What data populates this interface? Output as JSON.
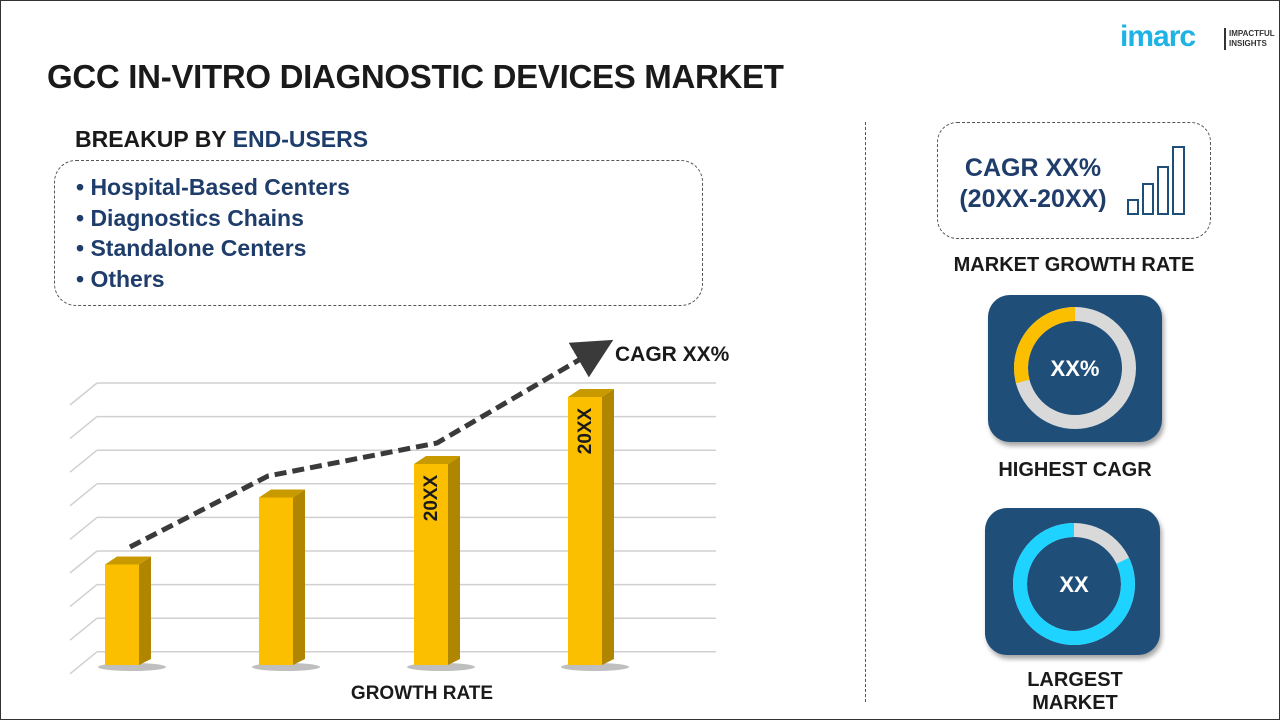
{
  "header": {
    "title": "GCC IN-VITRO DIAGNOSTIC DEVICES MARKET"
  },
  "logo": {
    "name": "imarc",
    "tagline_line1": "IMPACTFUL",
    "tagline_line2": "INSIGHTS"
  },
  "breakup": {
    "prefix": "BREAKUP BY ",
    "highlight": "END-USERS",
    "items": [
      "• Hospital-Based Centers",
      "• Diagnostics Chains",
      "• Standalone Centers",
      "• Others"
    ]
  },
  "growth_chart": {
    "cagr_label": "CAGR XX%",
    "xlabel": "GROWTH RATE",
    "bar_labels": [
      "",
      "",
      "20XX",
      "20XX"
    ],
    "relative_heights": [
      0.3,
      0.5,
      0.6,
      0.8
    ],
    "bar_color": "#fbbf00"
  },
  "market_growth": {
    "line1": "CAGR XX%",
    "line2": "(20XX-20XX)",
    "label": "MARKET GROWTH RATE"
  },
  "highest_cagr": {
    "value": "XX%",
    "label": "HIGHEST CAGR",
    "fill_fraction": 0.29,
    "color": "#fbbf00"
  },
  "largest_market": {
    "value": "XX",
    "label": "LARGEST MARKET",
    "fill_fraction": 0.82,
    "color": "#1ed3ff"
  },
  "colors": {
    "navy": "#1f4e79",
    "text_blue": "#1f3d6b",
    "ring_gray": "#d9d9d9"
  }
}
